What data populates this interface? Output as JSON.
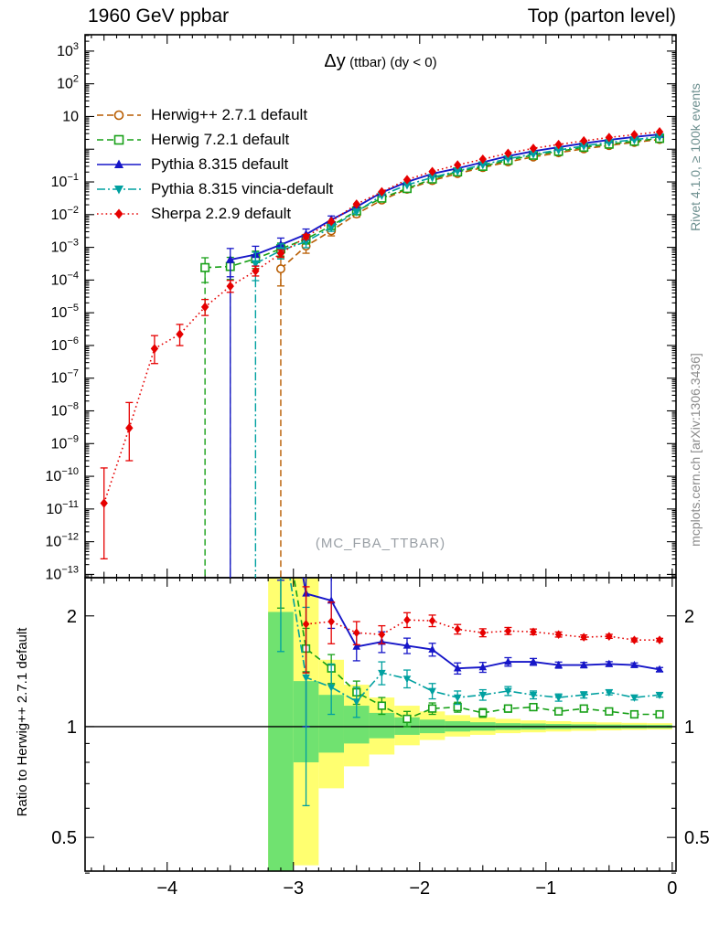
{
  "header": {
    "left": "1960 GeV ppbar",
    "right": "Top (parton level)"
  },
  "side_notes": {
    "rivet": "Rivet 4.1.0, ≥ 100k events",
    "mcplots": "mcplots.cern.ch [arXiv:1306.3436]"
  },
  "watermark": "(MC_FBA_TTBAR)",
  "colors": {
    "frame": "#000000",
    "band_outer": "#ffff70",
    "band_inner": "#70e270",
    "watermark": "#9aa0a6",
    "rivet_note": "#6b8e8e",
    "mcplots_note": "#8a8a8a"
  },
  "chart_data": {
    "type": "line",
    "title": "Δy",
    "title_sub": "(ttbar) (dy < 0)",
    "xlim": [
      -4.65,
      0.03
    ],
    "xticks": [
      {
        "v": -4,
        "label": "−4"
      },
      {
        "v": -3,
        "label": "−3"
      },
      {
        "v": -2,
        "label": "−2"
      },
      {
        "v": -1,
        "label": "−1"
      },
      {
        "v": 0,
        "label": "0"
      }
    ],
    "x": [
      -4.5,
      -4.3,
      -4.1,
      -3.9,
      -3.7,
      -3.5,
      -3.3,
      -3.1,
      -2.9,
      -2.7,
      -2.5,
      -2.3,
      -2.1,
      -1.9,
      -1.7,
      -1.5,
      -1.3,
      -1.1,
      -0.9,
      -0.7,
      -0.5,
      -0.3,
      -0.1
    ],
    "main_panel": {
      "ylog": true,
      "ylim_exp": [
        -13.1,
        3.5
      ],
      "ylabel_exponents": [
        3,
        2,
        1,
        -1,
        -2,
        -3,
        -4,
        -5,
        -6,
        -7,
        -8,
        -9,
        -10,
        -11,
        -12,
        -13
      ],
      "series": [
        {
          "id": "herwigpp",
          "label": "Herwig++ 2.7.1 default",
          "color": "#b85c00",
          "marker": "circle-open",
          "line": "dashed",
          "drop_x": [
            -3.1
          ],
          "values": [
            null,
            null,
            null,
            null,
            null,
            null,
            null,
            0.00022,
            0.0011,
            0.0032,
            0.0105,
            0.028,
            0.06,
            0.11,
            0.18,
            0.275,
            0.41,
            0.58,
            0.78,
            1.03,
            1.3,
            1.62,
            1.98
          ],
          "errors": [
            null,
            null,
            null,
            null,
            null,
            null,
            null,
            [
              0.3,
              2.2
            ],
            [
              0.6,
              1.5
            ],
            [
              0.7,
              1.35
            ],
            [
              0.8,
              1.25
            ],
            null,
            null,
            null,
            null,
            null,
            null,
            null,
            null,
            null,
            null,
            null,
            null
          ]
        },
        {
          "id": "herwig7",
          "label": "Herwig 7.2.1 default",
          "color": "#17a017",
          "marker": "square-open",
          "line": "dashed",
          "drop_x": [
            -3.7,
            -3.5
          ],
          "values": [
            null,
            null,
            null,
            null,
            0.00024,
            0.00026,
            0.00045,
            0.0009,
            0.0018,
            0.0046,
            0.013,
            0.032,
            0.063,
            0.123,
            0.203,
            0.3,
            0.46,
            0.655,
            0.86,
            1.15,
            1.43,
            1.75,
            2.14
          ],
          "errors": [
            null,
            null,
            null,
            null,
            [
              0.35,
              2.0
            ],
            [
              0.4,
              1.9
            ],
            [
              0.5,
              1.7
            ],
            [
              0.6,
              1.5
            ],
            [
              0.7,
              1.35
            ],
            [
              0.8,
              1.25
            ],
            null,
            null,
            null,
            null,
            null,
            null,
            null,
            null,
            null,
            null,
            null,
            null,
            null
          ]
        },
        {
          "id": "pythia",
          "label": "Pythia 8.315 default",
          "color": "#1616c8",
          "marker": "triangle-up",
          "line": "solid",
          "drop_x": [
            -3.5
          ],
          "values": [
            null,
            null,
            null,
            null,
            null,
            0.00042,
            0.0006,
            0.0012,
            0.0025,
            0.007,
            0.0173,
            0.0476,
            0.1,
            0.178,
            0.26,
            0.4,
            0.615,
            0.87,
            1.15,
            1.51,
            1.92,
            2.38,
            2.83
          ],
          "errors": [
            null,
            null,
            null,
            null,
            null,
            [
              0.3,
              2.2
            ],
            [
              0.45,
              1.8
            ],
            [
              0.55,
              1.6
            ],
            [
              0.65,
              1.45
            ],
            [
              0.75,
              1.3
            ],
            null,
            null,
            null,
            null,
            null,
            null,
            null,
            null,
            null,
            null,
            null,
            null,
            null
          ]
        },
        {
          "id": "vincia",
          "label": "Pythia 8.315 vincia-default",
          "color": "#00a0a0",
          "marker": "triangle-down",
          "line": "dashdot",
          "drop_x": [
            -3.3
          ],
          "values": [
            null,
            null,
            null,
            null,
            null,
            null,
            0.00032,
            0.0008,
            0.0015,
            0.0041,
            0.0123,
            0.039,
            0.081,
            0.137,
            0.216,
            0.335,
            0.51,
            0.71,
            0.94,
            1.26,
            1.61,
            1.95,
            2.42
          ],
          "errors": [
            null,
            null,
            null,
            null,
            null,
            null,
            [
              0.3,
              2.2
            ],
            [
              0.55,
              1.6
            ],
            [
              0.65,
              1.45
            ],
            [
              0.75,
              1.3
            ],
            null,
            null,
            null,
            null,
            null,
            null,
            null,
            null,
            null,
            null,
            null,
            null,
            null
          ]
        },
        {
          "id": "sherpa",
          "label": "Sherpa 2.2.9 default",
          "color": "#e60000",
          "marker": "diamond",
          "line": "dotted",
          "drop_x": [],
          "values": [
            1.5e-11,
            3e-09,
            8e-07,
            2.2e-06,
            1.5e-05,
            6.5e-05,
            0.00019,
            0.00065,
            0.0021,
            0.0062,
            0.021,
            0.05,
            0.117,
            0.208,
            0.33,
            0.495,
            0.75,
            1.06,
            1.39,
            1.8,
            2.28,
            2.79,
            3.4
          ],
          "errors": [
            [
              0.02,
              12
            ],
            [
              0.1,
              6
            ],
            [
              0.35,
              2.5
            ],
            [
              0.45,
              2.0
            ],
            [
              0.55,
              1.7
            ],
            [
              0.65,
              1.5
            ],
            [
              0.7,
              1.4
            ],
            [
              0.78,
              1.28
            ],
            [
              0.85,
              1.18
            ],
            null,
            null,
            null,
            null,
            null,
            null,
            null,
            null,
            null,
            null,
            null,
            null,
            null,
            null
          ]
        }
      ]
    },
    "ratio_panel": {
      "ylabel": "Ratio to Herwig++ 2.7.1 default",
      "ylog": true,
      "ylim": [
        0.405,
        2.54
      ],
      "yticks": [
        {
          "v": 0.5,
          "label": "0.5"
        },
        {
          "v": 1,
          "label": "1"
        },
        {
          "v": 2,
          "label": "2"
        }
      ],
      "yminor": [
        0.4,
        0.6,
        0.7,
        0.8,
        0.9
      ],
      "bin_width": 0.2,
      "bands": [
        {
          "x": -3.1,
          "outer": [
            0.405,
            2.54
          ],
          "inner": [
            0.405,
            2.05
          ]
        },
        {
          "x": -2.9,
          "outer": [
            0.42,
            2.54
          ],
          "inner": [
            0.8,
            1.33
          ]
        },
        {
          "x": -2.7,
          "outer": [
            0.68,
            1.52
          ],
          "inner": [
            0.85,
            1.22
          ]
        },
        {
          "x": -2.5,
          "outer": [
            0.78,
            1.3
          ],
          "inner": [
            0.9,
            1.14
          ]
        },
        {
          "x": -2.3,
          "outer": [
            0.84,
            1.2
          ],
          "inner": [
            0.93,
            1.09
          ]
        },
        {
          "x": -2.1,
          "outer": [
            0.89,
            1.14
          ],
          "inner": [
            0.95,
            1.06
          ]
        },
        {
          "x": -1.9,
          "outer": [
            0.92,
            1.1
          ],
          "inner": [
            0.96,
            1.045
          ]
        },
        {
          "x": -1.7,
          "outer": [
            0.94,
            1.075
          ],
          "inner": [
            0.97,
            1.035
          ]
        },
        {
          "x": -1.5,
          "outer": [
            0.95,
            1.06
          ],
          "inner": [
            0.975,
            1.028
          ]
        },
        {
          "x": -1.3,
          "outer": [
            0.96,
            1.05
          ],
          "inner": [
            0.98,
            1.022
          ]
        },
        {
          "x": -1.1,
          "outer": [
            0.965,
            1.04
          ],
          "inner": [
            0.982,
            1.02
          ]
        },
        {
          "x": -0.9,
          "outer": [
            0.97,
            1.035
          ],
          "inner": [
            0.985,
            1.017
          ]
        },
        {
          "x": -0.7,
          "outer": [
            0.974,
            1.03
          ],
          "inner": [
            0.987,
            1.015
          ]
        },
        {
          "x": -0.5,
          "outer": [
            0.977,
            1.027
          ],
          "inner": [
            0.988,
            1.013
          ]
        },
        {
          "x": -0.3,
          "outer": [
            0.98,
            1.024
          ],
          "inner": [
            0.989,
            1.012
          ]
        },
        {
          "x": -0.1,
          "outer": [
            0.982,
            1.022
          ],
          "inner": [
            0.99,
            1.011
          ]
        }
      ],
      "series": [
        {
          "ref": "herwig7",
          "x": [
            -3.1,
            -2.9,
            -2.7,
            -2.5,
            -2.3,
            -2.1,
            -1.9,
            -1.7,
            -1.5,
            -1.3,
            -1.1,
            -0.9,
            -0.7,
            -0.5,
            -0.3,
            -0.1
          ],
          "v": [
            4.1,
            1.63,
            1.44,
            1.24,
            1.14,
            1.05,
            1.12,
            1.13,
            1.09,
            1.12,
            1.13,
            1.1,
            1.12,
            1.1,
            1.08,
            1.08
          ],
          "e": [
            2.0,
            0.22,
            0.13,
            0.09,
            0.06,
            0.05,
            0.04,
            0.035,
            0.03,
            0.025,
            0.02,
            0.02,
            0.018,
            0.015,
            0.013,
            0.012
          ]
        },
        {
          "ref": "pythia",
          "x": [
            -3.1,
            -2.9,
            -2.7,
            -2.5,
            -2.3,
            -2.1,
            -1.9,
            -1.7,
            -1.5,
            -1.3,
            -1.1,
            -0.9,
            -0.7,
            -0.5,
            -0.3,
            -0.1
          ],
          "v": [
            5.5,
            2.3,
            2.2,
            1.65,
            1.7,
            1.66,
            1.62,
            1.44,
            1.45,
            1.5,
            1.5,
            1.47,
            1.47,
            1.48,
            1.47,
            1.43
          ],
          "e": [
            3.0,
            1.3,
            0.35,
            0.14,
            0.11,
            0.08,
            0.065,
            0.05,
            0.045,
            0.04,
            0.032,
            0.028,
            0.025,
            0.022,
            0.02,
            0.018
          ]
        },
        {
          "ref": "vincia",
          "x": [
            -3.1,
            -2.9,
            -2.7,
            -2.5,
            -2.3,
            -2.1,
            -1.9,
            -1.7,
            -1.5,
            -1.3,
            -1.1,
            -0.9,
            -0.7,
            -0.5,
            -0.3,
            -0.1
          ],
          "v": [
            3.6,
            1.36,
            1.28,
            1.17,
            1.4,
            1.35,
            1.25,
            1.2,
            1.22,
            1.25,
            1.22,
            1.2,
            1.22,
            1.24,
            1.2,
            1.22
          ],
          "e": [
            2.0,
            0.75,
            0.2,
            0.11,
            0.1,
            0.075,
            0.06,
            0.05,
            0.04,
            0.035,
            0.03,
            0.027,
            0.024,
            0.02,
            0.018,
            0.017
          ]
        },
        {
          "ref": "sherpa",
          "x": [
            -2.9,
            -2.7,
            -2.5,
            -2.3,
            -2.1,
            -1.9,
            -1.7,
            -1.5,
            -1.3,
            -1.1,
            -0.9,
            -0.7,
            -0.5,
            -0.3,
            -0.1
          ],
          "v": [
            1.9,
            1.93,
            1.8,
            1.78,
            1.95,
            1.94,
            1.84,
            1.8,
            1.82,
            1.81,
            1.78,
            1.75,
            1.76,
            1.72,
            1.72
          ],
          "e": [
            0.5,
            0.25,
            0.13,
            0.1,
            0.09,
            0.07,
            0.055,
            0.045,
            0.04,
            0.032,
            0.028,
            0.025,
            0.022,
            0.02,
            0.018
          ]
        }
      ]
    }
  }
}
